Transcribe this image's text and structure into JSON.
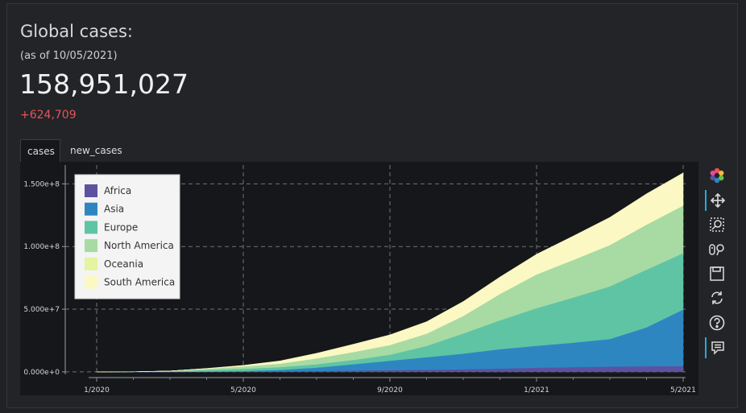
{
  "header": {
    "title": "Global cases:",
    "as_of": "(as of 10/05/2021)",
    "total": "158,951,027",
    "delta": "+624,709"
  },
  "tabs": [
    {
      "label": "cases",
      "active": true
    },
    {
      "label": "new_cases",
      "active": false
    }
  ],
  "toolbar": {
    "icons": [
      "bokeh-logo-icon",
      "pan-icon",
      "box-zoom-icon",
      "wheel-zoom-icon",
      "save-icon",
      "reset-icon",
      "help-icon",
      "hover-icon"
    ]
  },
  "colors": {
    "Africa": "#5d52a0",
    "Asia": "#2e86c1",
    "Europe": "#5fc4a4",
    "North America": "#a7dba3",
    "Oceania": "#e4f4a0",
    "South America": "#fbf8c4",
    "delta": "#e8535a"
  },
  "chart_data": {
    "type": "area",
    "stacked": true,
    "x": [
      "1/2020",
      "2/2020",
      "3/2020",
      "4/2020",
      "5/2020",
      "6/2020",
      "7/2020",
      "8/2020",
      "9/2020",
      "10/2020",
      "11/2020",
      "12/2020",
      "1/2021",
      "2/2021",
      "3/2021",
      "4/2021",
      "5/2021"
    ],
    "xticks": [
      "1/2020",
      "5/2020",
      "9/2020",
      "1/2021",
      "5/2021"
    ],
    "yticks": [
      "0.000e+0",
      "5.000e+7",
      "1.000e+8",
      "1.500e+8"
    ],
    "ylim": [
      -2000000,
      165000000
    ],
    "legend_position": "top-left",
    "series": [
      {
        "name": "Africa",
        "values": [
          0,
          0,
          0,
          30000,
          100000,
          300000,
          700000,
          1100000,
          1400000,
          1700000,
          2100000,
          2600000,
          3300000,
          3800000,
          4200000,
          4500000,
          4700000
        ]
      },
      {
        "name": "Asia",
        "values": [
          0,
          80000,
          100000,
          250000,
          600000,
          1300000,
          2700000,
          5000000,
          7500000,
          10000000,
          12500000,
          15500000,
          17500000,
          19500000,
          22000000,
          31000000,
          45000000
        ]
      },
      {
        "name": "Europe",
        "values": [
          0,
          0,
          400000,
          1200000,
          1800000,
          2200000,
          2700000,
          3400000,
          4800000,
          9000000,
          16000000,
          23000000,
          30000000,
          36000000,
          42000000,
          46000000,
          45000000
        ]
      },
      {
        "name": "North America",
        "values": [
          0,
          0,
          200000,
          1100000,
          1900000,
          2800000,
          4700000,
          6300000,
          7800000,
          9800000,
          14000000,
          21000000,
          27000000,
          30000000,
          33000000,
          36000000,
          38000000
        ]
      },
      {
        "name": "Oceania",
        "values": [
          0,
          0,
          5000,
          8000,
          9000,
          10000,
          15000,
          25000,
          30000,
          32000,
          34000,
          36000,
          38000,
          40000,
          43000,
          45000,
          47000
        ]
      },
      {
        "name": "South America",
        "values": [
          0,
          0,
          20000,
          150000,
          800000,
          2100000,
          4000000,
          6200000,
          8000000,
          9500000,
          11500000,
          13500000,
          16000000,
          19000000,
          22000000,
          24500000,
          26000000
        ]
      }
    ]
  }
}
